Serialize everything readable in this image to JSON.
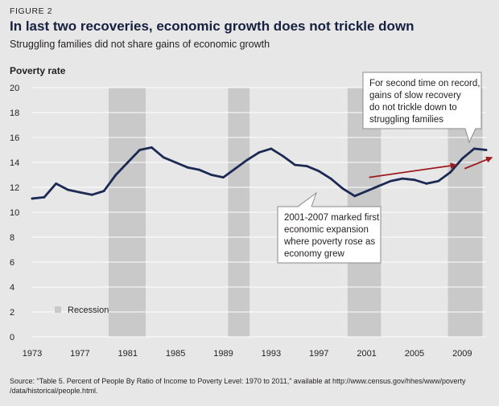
{
  "figure_label": "FIGURE 2",
  "title": "In last two recoveries, economic growth does not trickle down",
  "subtitle": "Struggling families did not share gains of economic growth",
  "source": "Source: \"Table 5. Percent of People By Ratio of Income to Poverty Level: 1970 to 2011,\" available at http://www.census.gov/hhes/www/poverty /data/historical/people.html.",
  "colors": {
    "background": "#e7e7e8",
    "line": "#1c2a53",
    "recession": "#c9c9ca",
    "grid": "#ffffff",
    "arrow": "#9b1b1e",
    "callout_bg": "#ffffff",
    "callout_border": "#8a8a8a"
  },
  "chart_data": {
    "type": "line",
    "title": "In last two recoveries, economic growth does not trickle down",
    "ylabel": "Poverty rate",
    "xlabel": "",
    "ylim": [
      0,
      20
    ],
    "xlim": [
      1973,
      2011
    ],
    "y_ticks": [
      0,
      2,
      4,
      6,
      8,
      10,
      12,
      14,
      16,
      18,
      20
    ],
    "x_ticks": [
      1973,
      1977,
      1981,
      1985,
      1989,
      1993,
      1997,
      2001,
      2005,
      2009
    ],
    "grid": true,
    "series": [
      {
        "name": "Poverty rate",
        "x": [
          1973,
          1974,
          1975,
          1976,
          1977,
          1978,
          1979,
          1980,
          1981,
          1982,
          1983,
          1984,
          1985,
          1986,
          1987,
          1988,
          1989,
          1990,
          1991,
          1992,
          1993,
          1994,
          1995,
          1996,
          1997,
          1998,
          1999,
          2000,
          2001,
          2002,
          2003,
          2004,
          2005,
          2006,
          2007,
          2008,
          2009,
          2010,
          2011
        ],
        "values": [
          11.1,
          11.2,
          12.3,
          11.8,
          11.6,
          11.4,
          11.7,
          13.0,
          14.0,
          15.0,
          15.2,
          14.4,
          14.0,
          13.6,
          13.4,
          13.0,
          12.8,
          13.5,
          14.2,
          14.8,
          15.1,
          14.5,
          13.8,
          13.7,
          13.3,
          12.7,
          11.9,
          11.3,
          11.7,
          12.1,
          12.5,
          12.7,
          12.6,
          12.3,
          12.5,
          13.2,
          14.3,
          15.1,
          15.0
        ]
      }
    ],
    "recessions": [
      {
        "start": 1979.4,
        "end": 1982.5
      },
      {
        "start": 1989.4,
        "end": 1991.2
      },
      {
        "start": 1999.4,
        "end": 2002.2
      },
      {
        "start": 2007.8,
        "end": 2010.7
      }
    ],
    "legend": {
      "label": "Recession",
      "position": "bottom-left"
    },
    "annotations": [
      {
        "text_lines": [
          "2001-2007 marked first",
          "economic expansion",
          "where poverty rose as",
          "economy grew"
        ],
        "position": "lower-middle"
      },
      {
        "text_lines": [
          "For second time on record,",
          "gains of slow recovery",
          "do not trickle down to",
          "struggling families"
        ],
        "position": "top-right"
      }
    ],
    "arrows": [
      {
        "from": [
          2001.2,
          12.8
        ],
        "to": [
          2008.5,
          13.8
        ]
      },
      {
        "from": [
          2009.2,
          13.5
        ],
        "to": [
          2011.5,
          14.4
        ]
      }
    ]
  }
}
